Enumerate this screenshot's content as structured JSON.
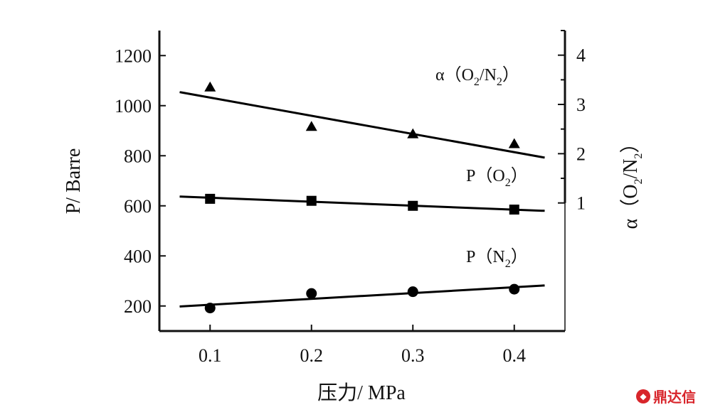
{
  "chart_data": {
    "type": "scatter",
    "xlabel": "压力/ MPa",
    "ylabel": "P/ Barre",
    "y2label": "α（O2/N2）",
    "xlim": [
      0.05,
      0.45
    ],
    "ylim": [
      100,
      1300
    ],
    "y2lim": [
      -1.6,
      4.5
    ],
    "x_ticks": [
      "0.1",
      "0.2",
      "0.3",
      "0.4"
    ],
    "y_ticks": [
      "200",
      "400",
      "600",
      "800",
      "1000",
      "1200"
    ],
    "y2_ticks": [
      "1",
      "2",
      "3",
      "4"
    ],
    "series": [
      {
        "name": "α（O2/N2）",
        "axis": "right",
        "marker": "triangle",
        "x": [
          0.1,
          0.2,
          0.3,
          0.4
        ],
        "values": [
          3.35,
          2.55,
          2.4,
          2.2
        ],
        "fit": {
          "x": [
            0.07,
            0.43
          ],
          "y": [
            3.25,
            1.92
          ]
        }
      },
      {
        "name": "P（O2）",
        "axis": "left",
        "marker": "square",
        "x": [
          0.1,
          0.2,
          0.3,
          0.4
        ],
        "values": [
          628,
          620,
          600,
          585
        ],
        "fit": {
          "x": [
            0.07,
            0.43
          ],
          "y": [
            637,
            580
          ]
        }
      },
      {
        "name": "P（N2）",
        "axis": "left",
        "marker": "circle",
        "x": [
          0.1,
          0.2,
          0.3,
          0.4
        ],
        "values": [
          192,
          250,
          257,
          267
        ],
        "fit": {
          "x": [
            0.07,
            0.43
          ],
          "y": [
            198,
            282
          ]
        }
      }
    ]
  },
  "watermark": {
    "text": "鼎达信",
    "icon": "logo-icon"
  }
}
